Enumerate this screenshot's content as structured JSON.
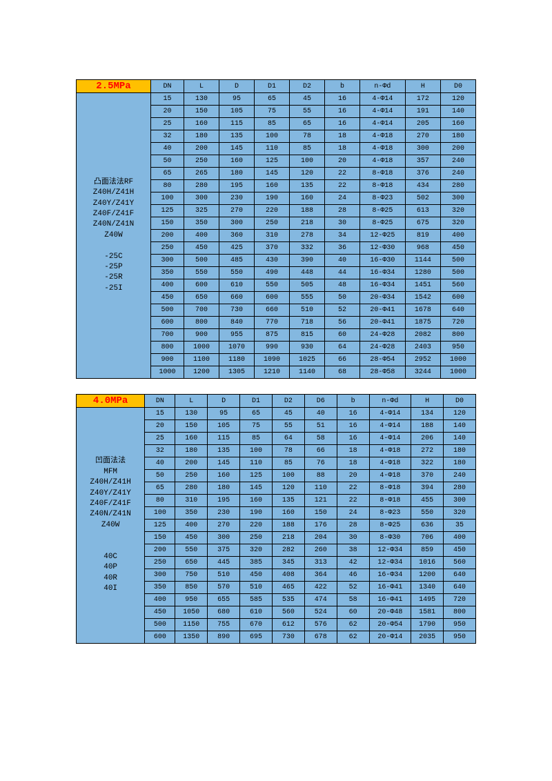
{
  "colors": {
    "page_bg": "#ffffff",
    "cell_bg": "#84b8e0",
    "title_bg": "#ffc000",
    "title_fg": "#ff0000",
    "border": "#000000"
  },
  "tables": [
    {
      "title": "2.5MPa",
      "columns": [
        "DN",
        "L",
        "D",
        "D1",
        "D2",
        "b",
        "n-Φd",
        "H",
        "D0"
      ],
      "label": "凸面法法RF\nZ40H/Z41H\nZ40Y/Z41Y\nZ40F/Z41F\nZ40N/Z41N\nZ40W\n\n-25C\n-25P\n-25R\n-25I",
      "rows": [
        [
          "15",
          "130",
          "95",
          "65",
          "45",
          "16",
          "4-Φ14",
          "172",
          "120"
        ],
        [
          "20",
          "150",
          "105",
          "75",
          "55",
          "16",
          "4-Φ14",
          "191",
          "140"
        ],
        [
          "25",
          "160",
          "115",
          "85",
          "65",
          "16",
          "4-Φ14",
          "205",
          "160"
        ],
        [
          "32",
          "180",
          "135",
          "100",
          "78",
          "18",
          "4-Φ18",
          "270",
          "180"
        ],
        [
          "40",
          "200",
          "145",
          "110",
          "85",
          "18",
          "4-Φ18",
          "300",
          "200"
        ],
        [
          "50",
          "250",
          "160",
          "125",
          "100",
          "20",
          "4-Φ18",
          "357",
          "240"
        ],
        [
          "65",
          "265",
          "180",
          "145",
          "120",
          "22",
          "8-Φ18",
          "376",
          "240"
        ],
        [
          "80",
          "280",
          "195",
          "160",
          "135",
          "22",
          "8-Φ18",
          "434",
          "280"
        ],
        [
          "100",
          "300",
          "230",
          "190",
          "160",
          "24",
          "8-Φ23",
          "502",
          "300"
        ],
        [
          "125",
          "325",
          "270",
          "220",
          "188",
          "28",
          "8-Φ25",
          "613",
          "320"
        ],
        [
          "150",
          "350",
          "300",
          "250",
          "218",
          "30",
          "8-Φ25",
          "675",
          "320"
        ],
        [
          "200",
          "400",
          "360",
          "310",
          "278",
          "34",
          "12-Φ25",
          "819",
          "400"
        ],
        [
          "250",
          "450",
          "425",
          "370",
          "332",
          "36",
          "12-Φ30",
          "968",
          "450"
        ],
        [
          "300",
          "500",
          "485",
          "430",
          "390",
          "40",
          "16-Φ30",
          "1144",
          "500"
        ],
        [
          "350",
          "550",
          "550",
          "490",
          "448",
          "44",
          "16-Φ34",
          "1280",
          "500"
        ],
        [
          "400",
          "600",
          "610",
          "550",
          "505",
          "48",
          "16-Φ34",
          "1451",
          "560"
        ],
        [
          "450",
          "650",
          "660",
          "600",
          "555",
          "50",
          "20-Φ34",
          "1542",
          "600"
        ],
        [
          "500",
          "700",
          "730",
          "660",
          "510",
          "52",
          "20-Φ41",
          "1678",
          "640"
        ],
        [
          "600",
          "800",
          "840",
          "770",
          "718",
          "56",
          "20-Φ41",
          "1875",
          "720"
        ],
        [
          "700",
          "900",
          "955",
          "875",
          "815",
          "60",
          "24-Φ28",
          "2082",
          "800"
        ],
        [
          "800",
          "1000",
          "1070",
          "990",
          "930",
          "64",
          "24-Φ28",
          "2403",
          "950"
        ],
        [
          "900",
          "1100",
          "1180",
          "1090",
          "1025",
          "66",
          "28-Φ54",
          "2952",
          "1000"
        ],
        [
          "1000",
          "1200",
          "1305",
          "1210",
          "1140",
          "68",
          "28-Φ58",
          "3244",
          "1000"
        ]
      ]
    },
    {
      "title": "4.0MPa",
      "columns": [
        "DN",
        "L",
        "D",
        "D1",
        "D2",
        "D6",
        "b",
        "n-Φd",
        "H",
        "D0"
      ],
      "label": "凹面法法\nMFM\nZ40H/Z41H\nZ40Y/Z41Y\nZ40F/Z41F\nZ40N/Z41N\nZ40W\n\n\n40C\n40P\n40R\n40I",
      "rows": [
        [
          "15",
          "130",
          "95",
          "65",
          "45",
          "40",
          "16",
          "4-Φ14",
          "134",
          "120"
        ],
        [
          "20",
          "150",
          "105",
          "75",
          "55",
          "51",
          "16",
          "4-Φ14",
          "188",
          "140"
        ],
        [
          "25",
          "160",
          "115",
          "85",
          "64",
          "58",
          "16",
          "4-Φ14",
          "206",
          "140"
        ],
        [
          "32",
          "180",
          "135",
          "100",
          "78",
          "66",
          "18",
          "4-Φ18",
          "272",
          "180"
        ],
        [
          "40",
          "200",
          "145",
          "110",
          "85",
          "76",
          "18",
          "4-Φ18",
          "322",
          "180"
        ],
        [
          "50",
          "250",
          "160",
          "125",
          "100",
          "88",
          "20",
          "4-Φ18",
          "370",
          "240"
        ],
        [
          "65",
          "280",
          "180",
          "145",
          "120",
          "110",
          "22",
          "8-Φ18",
          "394",
          "280"
        ],
        [
          "80",
          "310",
          "195",
          "160",
          "135",
          "121",
          "22",
          "8-Φ18",
          "455",
          "300"
        ],
        [
          "100",
          "350",
          "230",
          "190",
          "160",
          "150",
          "24",
          "8-Φ23",
          "550",
          "320"
        ],
        [
          "125",
          "400",
          "270",
          "220",
          "188",
          "176",
          "28",
          "8-Φ25",
          "636",
          "35"
        ],
        [
          "150",
          "450",
          "300",
          "250",
          "218",
          "204",
          "30",
          "8-Φ30",
          "706",
          "400"
        ],
        [
          "200",
          "550",
          "375",
          "320",
          "282",
          "260",
          "38",
          "12-Φ34",
          "859",
          "450"
        ],
        [
          "250",
          "650",
          "445",
          "385",
          "345",
          "313",
          "42",
          "12-Φ34",
          "1016",
          "560"
        ],
        [
          "300",
          "750",
          "510",
          "450",
          "408",
          "364",
          "46",
          "16-Φ34",
          "1200",
          "640"
        ],
        [
          "350",
          "850",
          "570",
          "510",
          "465",
          "422",
          "52",
          "16-Φ41",
          "1340",
          "640"
        ],
        [
          "400",
          "950",
          "655",
          "585",
          "535",
          "474",
          "58",
          "16-Φ41",
          "1495",
          "720"
        ],
        [
          "450",
          "1050",
          "680",
          "610",
          "560",
          "524",
          "60",
          "20-Φ48",
          "1581",
          "800"
        ],
        [
          "500",
          "1150",
          "755",
          "670",
          "612",
          "576",
          "62",
          "20-Φ54",
          "1790",
          "950"
        ],
        [
          "600",
          "1350",
          "890",
          "695",
          "730",
          "678",
          "62",
          "20-Φ14",
          "2035",
          "950"
        ]
      ]
    }
  ]
}
